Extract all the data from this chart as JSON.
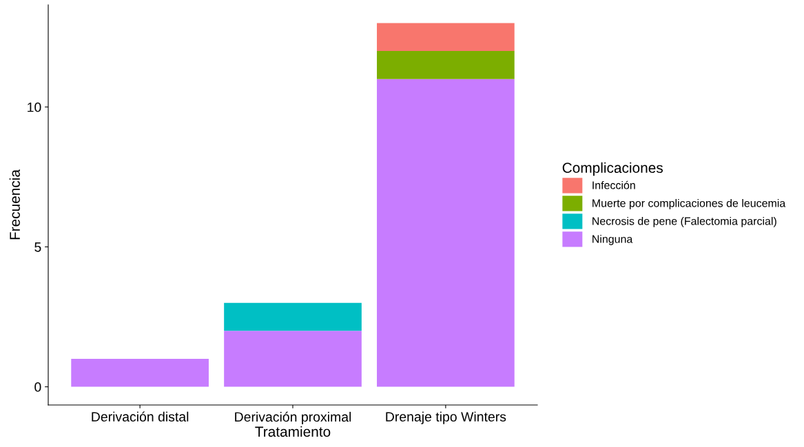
{
  "chart_data": {
    "type": "bar",
    "stacked": true,
    "xlabel": "Tratamiento",
    "ylabel": "Frecuencia",
    "legend_title": "Complicaciones",
    "legend": "right",
    "grid": false,
    "categories": [
      "Derivación distal",
      "Derivación proximal",
      "Drenaje tipo Winters"
    ],
    "ylim": [
      -0.65,
      13.65
    ],
    "yticks": [
      0,
      5,
      10
    ],
    "series": [
      {
        "name": "Ninguna",
        "color": "#c77cff",
        "values": [
          1,
          2,
          11
        ]
      },
      {
        "name": "Necrosis de pene (Falectomia parcial)",
        "color": "#00bfc4",
        "values": [
          null,
          1,
          null
        ]
      },
      {
        "name": "Muerte por complicaciones de leucemia",
        "color": "#7cae00",
        "values": [
          null,
          null,
          1
        ]
      },
      {
        "name": "Infección",
        "color": "#f8766d",
        "values": [
          null,
          null,
          1
        ]
      }
    ]
  }
}
